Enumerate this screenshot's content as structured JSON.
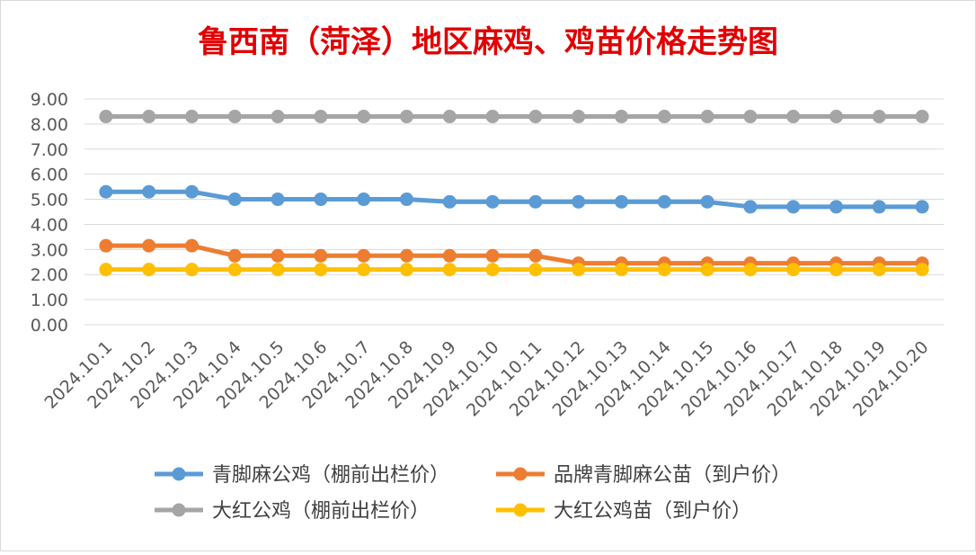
{
  "chart_data": {
    "type": "line",
    "title": "鲁西南（菏泽）地区麻鸡、鸡苗价格走势图",
    "title_color": "#e00000",
    "xlabel": "",
    "ylabel": "",
    "ylim": [
      0,
      9
    ],
    "yticks": [
      "0.00",
      "1.00",
      "2.00",
      "3.00",
      "4.00",
      "5.00",
      "6.00",
      "7.00",
      "8.00",
      "9.00"
    ],
    "grid": "horizontal",
    "legend_position": "bottom",
    "categories": [
      "2024.10.1",
      "2024.10.2",
      "2024.10.3",
      "2024.10.4",
      "2024.10.5",
      "2024.10.6",
      "2024.10.7",
      "2024.10.8",
      "2024.10.9",
      "2024.10.10",
      "2024.10.11",
      "2024.10.12",
      "2024.10.13",
      "2024.10.14",
      "2024.10.15",
      "2024.10.16",
      "2024.10.17",
      "2024.10.18",
      "2024.10.19",
      "2024.10.20"
    ],
    "series": [
      {
        "name": "青脚麻公鸡（棚前出栏价）",
        "color": "#5b9bd5",
        "values": [
          5.3,
          5.3,
          5.3,
          5.0,
          5.0,
          5.0,
          5.0,
          5.0,
          4.9,
          4.9,
          4.9,
          4.9,
          4.9,
          4.9,
          4.9,
          4.7,
          4.7,
          4.7,
          4.7,
          4.7
        ]
      },
      {
        "name": "品牌青脚麻公苗（到户价）",
        "color": "#ed7d31",
        "values": [
          3.15,
          3.15,
          3.15,
          2.75,
          2.75,
          2.75,
          2.75,
          2.75,
          2.75,
          2.75,
          2.75,
          2.45,
          2.45,
          2.45,
          2.45,
          2.45,
          2.45,
          2.45,
          2.45,
          2.45
        ]
      },
      {
        "name": "大红公鸡（棚前出栏价）",
        "color": "#a5a5a5",
        "values": [
          8.3,
          8.3,
          8.3,
          8.3,
          8.3,
          8.3,
          8.3,
          8.3,
          8.3,
          8.3,
          8.3,
          8.3,
          8.3,
          8.3,
          8.3,
          8.3,
          8.3,
          8.3,
          8.3,
          8.3
        ]
      },
      {
        "name": "大红公鸡苗（到户价）",
        "color": "#ffc000",
        "values": [
          2.2,
          2.2,
          2.2,
          2.2,
          2.2,
          2.2,
          2.2,
          2.2,
          2.2,
          2.2,
          2.2,
          2.2,
          2.2,
          2.2,
          2.2,
          2.2,
          2.2,
          2.2,
          2.2,
          2.2
        ]
      }
    ]
  }
}
